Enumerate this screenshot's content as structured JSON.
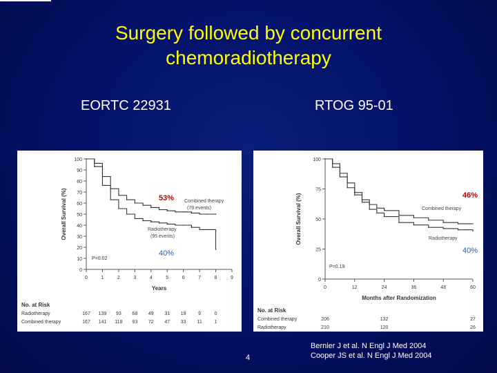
{
  "slide": {
    "title_line1": "Surgery followed by concurrent",
    "title_line2": "chemoradiotherapy",
    "left_label": "EORTC 22931",
    "right_label": "RTOG 95-01",
    "references": [
      "Bernier J et al. N Engl J Med 2004",
      "Cooper JS et al. N Engl J Med 2004"
    ],
    "page_number": "4",
    "colors": {
      "title": "#ffff00",
      "background": "#04126a",
      "annotation": "#c00000",
      "annotation_blue": "#1f5fbf"
    }
  },
  "chart_data": [
    {
      "type": "line",
      "ylabel": "Overall Survival (%)",
      "xlabel": "Years",
      "xlim": [
        0,
        9
      ],
      "ylim": [
        0,
        100
      ],
      "xticks": [
        "0",
        "1",
        "2",
        "3",
        "4",
        "5",
        "6",
        "7",
        "8",
        "9"
      ],
      "yticks": [
        "0",
        "10",
        "20",
        "30",
        "40",
        "50",
        "60",
        "70",
        "80",
        "90",
        "100"
      ],
      "pvalue": "P=0.02",
      "series": [
        {
          "name": "Combined therapy",
          "events": "(79 events)",
          "x": [
            0,
            0.5,
            1,
            1.5,
            2,
            2.5,
            3,
            3.5,
            4,
            4.5,
            5,
            5.5,
            6,
            6.5,
            7,
            7.5,
            8
          ],
          "y": [
            100,
            96,
            84,
            73,
            67,
            63,
            60,
            58,
            56,
            54,
            53,
            52,
            52,
            51,
            50,
            50,
            50
          ]
        },
        {
          "name": "Radiotherapy",
          "events": "(95 events)",
          "x": [
            0,
            0.5,
            1,
            1.5,
            2,
            2.5,
            3,
            3.5,
            4,
            4.5,
            5,
            5.5,
            6,
            6.5,
            7,
            7.5,
            8
          ],
          "y": [
            100,
            93,
            76,
            63,
            55,
            50,
            46,
            44,
            43,
            42,
            41,
            40,
            40,
            38,
            36,
            36,
            18
          ]
        }
      ],
      "annotations": {
        "upper": "53%",
        "lower": "40%"
      },
      "at_risk": {
        "header": "No. at Risk",
        "rows": [
          {
            "label": "Radiotherapy",
            "values": [
              "167",
              "139",
              "93",
              "68",
              "49",
              "31",
              "19",
              "9",
              "0"
            ]
          },
          {
            "label": "Combined therapy",
            "values": [
              "167",
              "141",
              "118",
              "93",
              "72",
              "47",
              "33",
              "11",
              "1"
            ]
          }
        ]
      }
    },
    {
      "type": "line",
      "ylabel": "Overall Survival (%)",
      "xlabel": "Months after Randomization",
      "xlim": [
        0,
        60
      ],
      "ylim": [
        0,
        100
      ],
      "xticks": [
        "0",
        "12",
        "24",
        "36",
        "48",
        "60"
      ],
      "yticks": [
        "0",
        "25",
        "50",
        "75",
        "100"
      ],
      "pvalue": "P=0.19",
      "series": [
        {
          "name": "Combined therapy",
          "x": [
            0,
            3,
            6,
            9,
            12,
            15,
            18,
            21,
            24,
            30,
            36,
            42,
            48,
            54,
            60
          ],
          "y": [
            100,
            96,
            88,
            80,
            72,
            66,
            62,
            59,
            57,
            53,
            51,
            49,
            47,
            46,
            46
          ]
        },
        {
          "name": "Radiotherapy",
          "x": [
            0,
            3,
            6,
            9,
            12,
            15,
            18,
            21,
            24,
            30,
            36,
            42,
            48,
            54,
            60
          ],
          "y": [
            100,
            93,
            85,
            76,
            70,
            64,
            58,
            55,
            52,
            47,
            45,
            43,
            42,
            41,
            40
          ]
        }
      ],
      "annotations": {
        "upper": "46%",
        "lower": "40%"
      },
      "at_risk": {
        "header": "No. at Risk",
        "rows": [
          {
            "label": "Combined therapy",
            "values": [
              "206",
              "132",
              "27"
            ]
          },
          {
            "label": "Radiotherapy",
            "values": [
              "210",
              "120",
              "26"
            ]
          }
        ]
      }
    }
  ]
}
